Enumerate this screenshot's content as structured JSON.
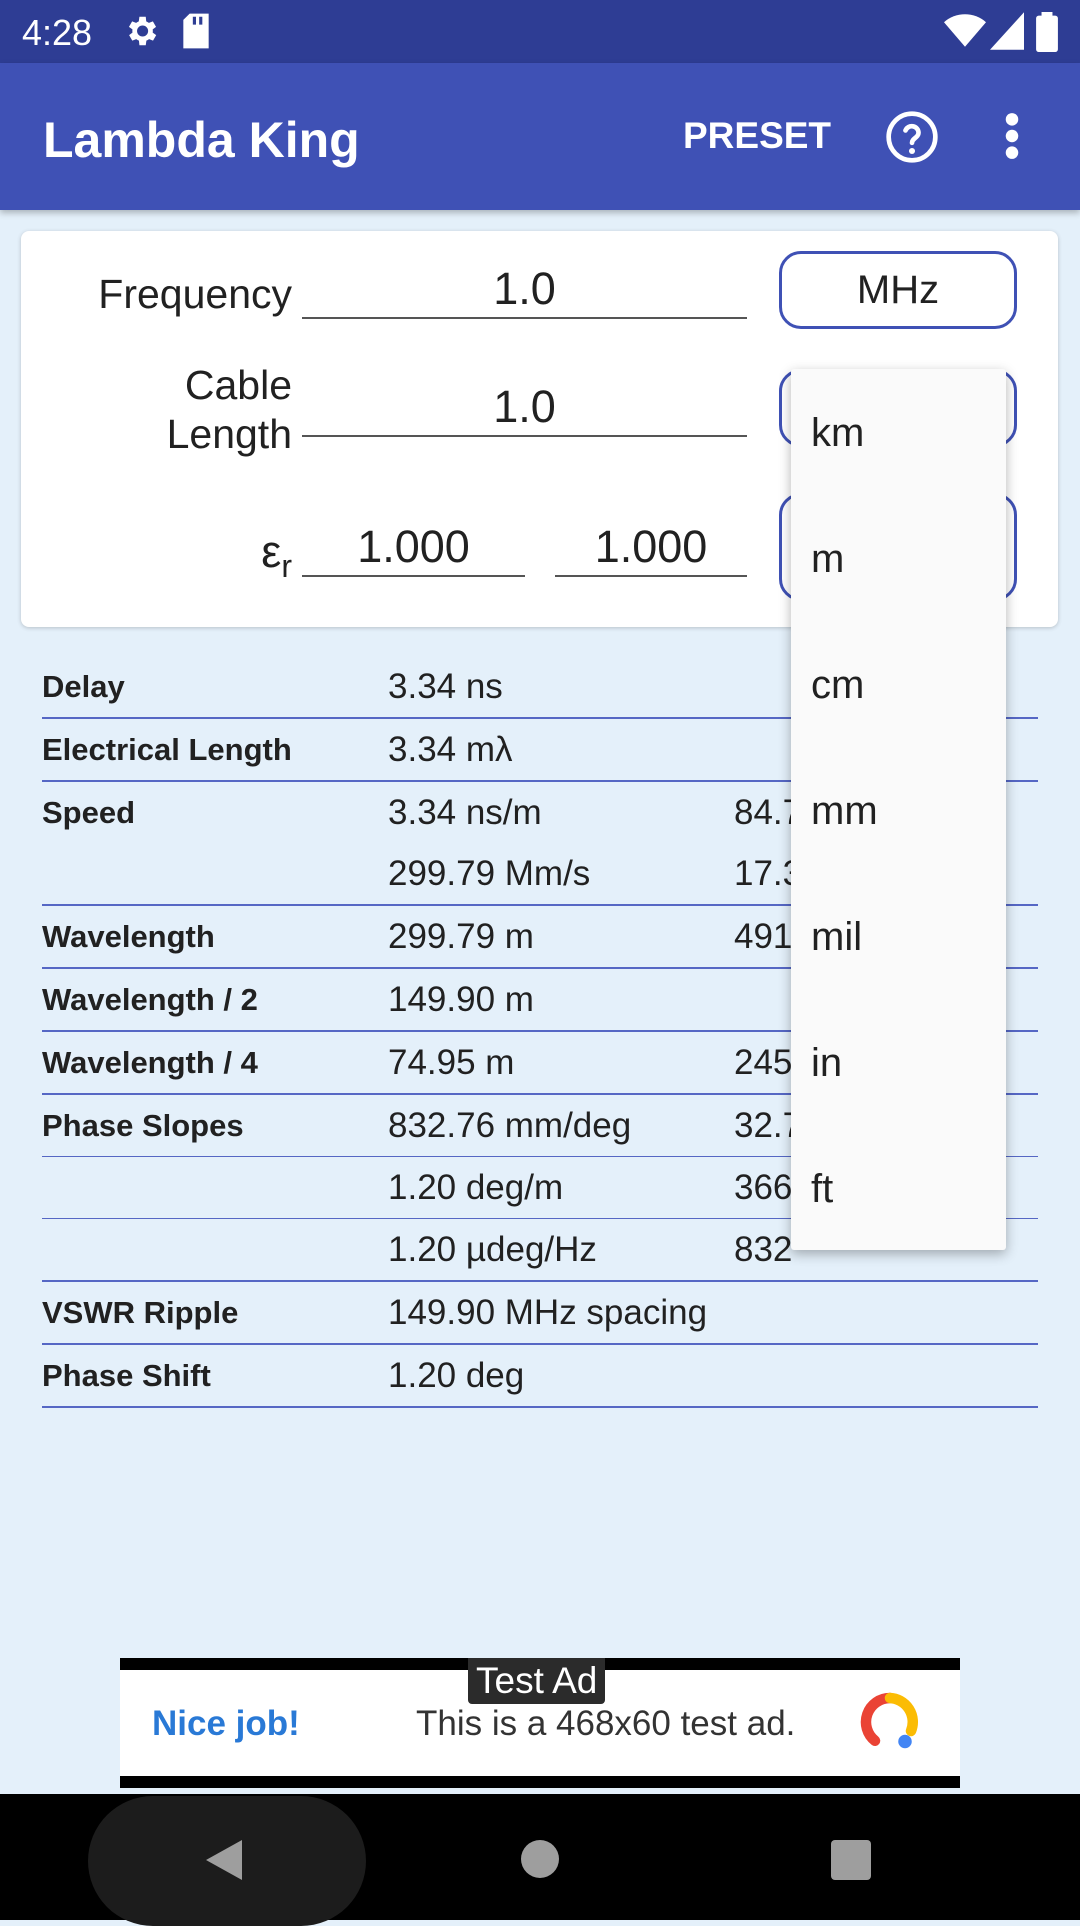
{
  "status_bar": {
    "time": "4:28"
  },
  "app_bar": {
    "title": "Lambda King",
    "preset_label": "PRESET"
  },
  "inputs": {
    "frequency_label": "Frequency",
    "frequency_value": "1.0",
    "frequency_unit": "MHz",
    "cable_label_line1": "Cable",
    "cable_label_line2": "Length",
    "cable_value": "1.0",
    "er_symbol": "ε",
    "er_sub": "r",
    "er_value1": "1.000",
    "er_value2": "1.000"
  },
  "results": {
    "delay": {
      "label": "Delay",
      "v1": "3.34 ns",
      "v2": ""
    },
    "electrical_length": {
      "label": "Electrical Length",
      "v1": "3.34 mλ",
      "v2": ""
    },
    "speed": {
      "label": "Speed",
      "line1_v1": "3.34 ns/m",
      "line1_v2": "84.7",
      "line2_v1": "299.79 Mm/s",
      "line2_v2": "17.3"
    },
    "wavelength": {
      "label": "Wavelength",
      "v1": "299.79 m",
      "v2": "491"
    },
    "wavelength_half": {
      "label": "Wavelength / 2",
      "v1": "149.90 m",
      "v2": ""
    },
    "wavelength_quarter": {
      "label": "Wavelength / 4",
      "v1": "74.95 m",
      "v2": "245"
    },
    "phase_slopes": {
      "label": "Phase Slopes",
      "line1_v1": "832.76 mm/deg",
      "line1_v2": "32.7",
      "line2_v1": "1.20 deg/m",
      "line2_v2": "366",
      "line3_v1": "1.20 µdeg/Hz",
      "line3_v2": "832"
    },
    "vswr_ripple": {
      "label": "VSWR Ripple",
      "v1": "149.90 MHz spacing"
    },
    "phase_shift": {
      "label": "Phase Shift",
      "v1": "1.20 deg"
    }
  },
  "dropdown": {
    "options": [
      "km",
      "m",
      "cm",
      "mm",
      "mil",
      "in",
      "ft"
    ]
  },
  "ad": {
    "badge": "Test Ad",
    "headline": "Nice job!",
    "body": "This is a 468x60 test ad."
  },
  "colors": {
    "app_bar": "#3f51b5",
    "status_bar": "#2e3d94",
    "background": "#e4f0fa",
    "accent": "#3f51b5"
  }
}
